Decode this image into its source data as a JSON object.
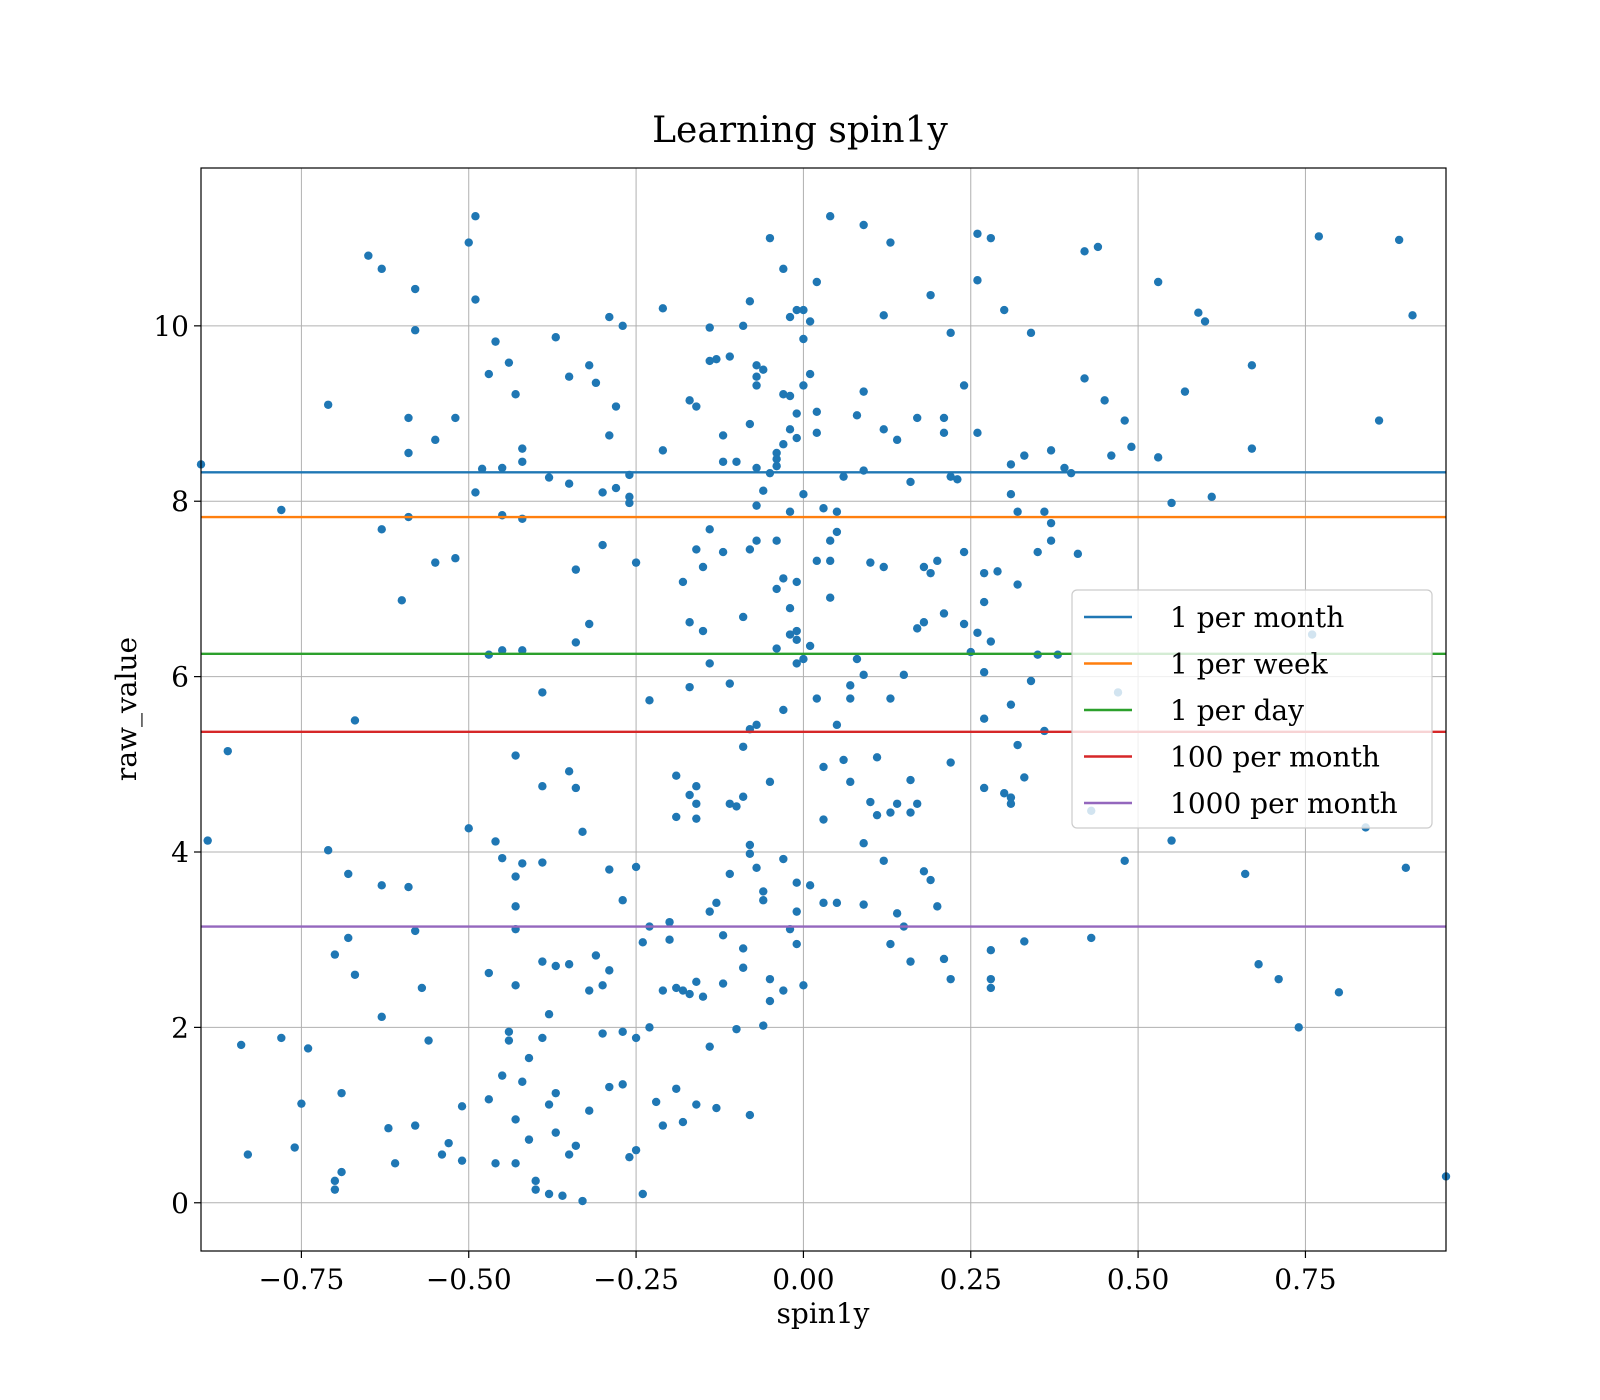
{
  "chart_data": {
    "type": "scatter",
    "title": "Learning spin1y",
    "xlabel": "spin1y",
    "ylabel": "raw_value",
    "xlim": [
      -0.9,
      0.96
    ],
    "ylim": [
      -0.55,
      11.8
    ],
    "x_ticks": [
      -0.75,
      -0.5,
      -0.25,
      0.0,
      0.25,
      0.5,
      0.75
    ],
    "x_tick_labels": [
      "−0.75",
      "−0.50",
      "−0.25",
      "0.00",
      "0.25",
      "0.50",
      "0.75"
    ],
    "y_ticks": [
      0,
      2,
      4,
      6,
      8,
      10
    ],
    "y_tick_labels": [
      "0",
      "2",
      "4",
      "6",
      "8",
      "10"
    ],
    "grid": true,
    "legend_position": "center-right",
    "point_color": "#1f77b4",
    "thresholds": [
      {
        "name": "1 per month",
        "value": 8.33,
        "color": "#1f77b4"
      },
      {
        "name": "1 per week",
        "value": 7.82,
        "color": "#ff7f0e"
      },
      {
        "name": "1 per day",
        "value": 6.26,
        "color": "#2ca02c"
      },
      {
        "name": "100 per month",
        "value": 5.37,
        "color": "#d62728"
      },
      {
        "name": "1000 per month",
        "value": 3.15,
        "color": "#9467bd"
      }
    ],
    "points": [
      [
        -0.9,
        8.42
      ],
      [
        -0.89,
        4.13
      ],
      [
        -0.86,
        5.15
      ],
      [
        -0.84,
        1.8
      ],
      [
        -0.83,
        0.55
      ],
      [
        -0.78,
        7.9
      ],
      [
        -0.78,
        1.88
      ],
      [
        -0.76,
        0.63
      ],
      [
        -0.75,
        1.13
      ],
      [
        -0.74,
        1.76
      ],
      [
        -0.71,
        9.1
      ],
      [
        -0.71,
        4.02
      ],
      [
        -0.7,
        2.83
      ],
      [
        -0.7,
        0.25
      ],
      [
        -0.7,
        0.15
      ],
      [
        -0.69,
        0.35
      ],
      [
        -0.69,
        1.25
      ],
      [
        -0.68,
        3.75
      ],
      [
        -0.68,
        3.02
      ],
      [
        -0.67,
        2.6
      ],
      [
        -0.67,
        5.5
      ],
      [
        -0.65,
        10.8
      ],
      [
        -0.63,
        10.65
      ],
      [
        -0.63,
        7.68
      ],
      [
        -0.63,
        3.62
      ],
      [
        -0.63,
        2.12
      ],
      [
        -0.62,
        0.85
      ],
      [
        -0.61,
        0.45
      ],
      [
        -0.6,
        6.87
      ],
      [
        -0.59,
        8.95
      ],
      [
        -0.59,
        8.55
      ],
      [
        -0.59,
        7.82
      ],
      [
        -0.59,
        3.6
      ],
      [
        -0.58,
        10.42
      ],
      [
        -0.58,
        9.95
      ],
      [
        -0.58,
        3.1
      ],
      [
        -0.58,
        0.88
      ],
      [
        -0.57,
        2.45
      ],
      [
        -0.56,
        1.85
      ],
      [
        -0.55,
        8.7
      ],
      [
        -0.55,
        7.3
      ],
      [
        -0.54,
        0.55
      ],
      [
        -0.53,
        0.68
      ],
      [
        -0.52,
        8.95
      ],
      [
        -0.52,
        7.35
      ],
      [
        -0.51,
        0.48
      ],
      [
        -0.51,
        1.1
      ],
      [
        -0.5,
        10.95
      ],
      [
        -0.5,
        4.27
      ],
      [
        -0.49,
        11.25
      ],
      [
        -0.49,
        10.3
      ],
      [
        -0.49,
        8.1
      ],
      [
        -0.48,
        8.37
      ],
      [
        -0.47,
        9.45
      ],
      [
        -0.47,
        6.25
      ],
      [
        -0.47,
        2.62
      ],
      [
        -0.47,
        1.18
      ],
      [
        -0.46,
        9.82
      ],
      [
        -0.46,
        4.12
      ],
      [
        -0.46,
        0.45
      ],
      [
        -0.45,
        8.38
      ],
      [
        -0.45,
        7.84
      ],
      [
        -0.45,
        6.3
      ],
      [
        -0.45,
        3.93
      ],
      [
        -0.45,
        1.45
      ],
      [
        -0.44,
        9.58
      ],
      [
        -0.44,
        1.95
      ],
      [
        -0.44,
        1.85
      ],
      [
        -0.43,
        0.95
      ],
      [
        -0.43,
        0.45
      ],
      [
        -0.43,
        9.22
      ],
      [
        -0.43,
        5.1
      ],
      [
        -0.43,
        3.72
      ],
      [
        -0.43,
        3.38
      ],
      [
        -0.43,
        3.12
      ],
      [
        -0.43,
        2.48
      ],
      [
        -0.42,
        8.45
      ],
      [
        -0.42,
        8.6
      ],
      [
        -0.42,
        7.8
      ],
      [
        -0.42,
        6.3
      ],
      [
        -0.42,
        3.87
      ],
      [
        -0.42,
        1.38
      ],
      [
        -0.41,
        1.65
      ],
      [
        -0.41,
        0.72
      ],
      [
        -0.4,
        0.25
      ],
      [
        -0.4,
        0.15
      ],
      [
        -0.39,
        5.82
      ],
      [
        -0.39,
        4.75
      ],
      [
        -0.39,
        3.88
      ],
      [
        -0.39,
        2.75
      ],
      [
        -0.39,
        1.88
      ],
      [
        -0.38,
        8.27
      ],
      [
        -0.38,
        2.15
      ],
      [
        -0.38,
        1.12
      ],
      [
        -0.38,
        0.1
      ],
      [
        -0.37,
        9.87
      ],
      [
        -0.37,
        2.7
      ],
      [
        -0.37,
        1.25
      ],
      [
        -0.37,
        0.8
      ],
      [
        -0.36,
        0.08
      ],
      [
        -0.35,
        9.42
      ],
      [
        -0.35,
        8.2
      ],
      [
        -0.35,
        4.92
      ],
      [
        -0.35,
        2.72
      ],
      [
        -0.35,
        0.55
      ],
      [
        -0.34,
        7.22
      ],
      [
        -0.34,
        6.39
      ],
      [
        -0.34,
        4.73
      ],
      [
        -0.34,
        0.65
      ],
      [
        -0.33,
        4.23
      ],
      [
        -0.33,
        0.02
      ],
      [
        -0.32,
        9.55
      ],
      [
        -0.32,
        6.6
      ],
      [
        -0.32,
        2.42
      ],
      [
        -0.32,
        1.05
      ],
      [
        -0.31,
        9.35
      ],
      [
        -0.31,
        2.82
      ],
      [
        -0.3,
        8.1
      ],
      [
        -0.3,
        7.5
      ],
      [
        -0.3,
        2.48
      ],
      [
        -0.3,
        1.93
      ],
      [
        -0.29,
        10.1
      ],
      [
        -0.29,
        8.75
      ],
      [
        -0.29,
        3.8
      ],
      [
        -0.29,
        2.65
      ],
      [
        -0.29,
        1.32
      ],
      [
        -0.28,
        9.08
      ],
      [
        -0.28,
        8.15
      ],
      [
        -0.27,
        10.0
      ],
      [
        -0.27,
        3.45
      ],
      [
        -0.27,
        1.95
      ],
      [
        -0.27,
        1.35
      ],
      [
        -0.26,
        8.3
      ],
      [
        -0.26,
        8.05
      ],
      [
        -0.26,
        7.98
      ],
      [
        -0.26,
        0.52
      ],
      [
        -0.25,
        7.3
      ],
      [
        -0.25,
        3.83
      ],
      [
        -0.25,
        1.88
      ],
      [
        -0.25,
        0.6
      ],
      [
        -0.24,
        2.97
      ],
      [
        -0.24,
        0.1
      ],
      [
        -0.23,
        5.73
      ],
      [
        -0.23,
        2.0
      ],
      [
        -0.23,
        3.15
      ],
      [
        -0.22,
        1.15
      ],
      [
        -0.21,
        10.2
      ],
      [
        -0.21,
        8.58
      ],
      [
        -0.21,
        2.42
      ],
      [
        -0.21,
        0.88
      ],
      [
        -0.2,
        3.0
      ],
      [
        -0.2,
        3.2
      ],
      [
        -0.19,
        4.87
      ],
      [
        -0.19,
        4.4
      ],
      [
        -0.19,
        2.45
      ],
      [
        -0.19,
        1.3
      ],
      [
        -0.18,
        7.08
      ],
      [
        -0.18,
        2.42
      ],
      [
        -0.18,
        0.92
      ],
      [
        -0.17,
        9.15
      ],
      [
        -0.17,
        6.62
      ],
      [
        -0.17,
        5.88
      ],
      [
        -0.17,
        4.65
      ],
      [
        -0.17,
        2.38
      ],
      [
        -0.16,
        9.08
      ],
      [
        -0.16,
        7.45
      ],
      [
        -0.16,
        4.55
      ],
      [
        -0.16,
        4.75
      ],
      [
        -0.16,
        4.38
      ],
      [
        -0.16,
        2.52
      ],
      [
        -0.16,
        1.12
      ],
      [
        -0.15,
        6.52
      ],
      [
        -0.15,
        7.25
      ],
      [
        -0.15,
        2.35
      ],
      [
        -0.14,
        9.98
      ],
      [
        -0.14,
        9.6
      ],
      [
        -0.14,
        7.68
      ],
      [
        -0.14,
        6.15
      ],
      [
        -0.14,
        3.32
      ],
      [
        -0.14,
        1.78
      ],
      [
        -0.13,
        9.62
      ],
      [
        -0.13,
        3.42
      ],
      [
        -0.13,
        1.08
      ],
      [
        -0.12,
        8.75
      ],
      [
        -0.12,
        8.45
      ],
      [
        -0.12,
        7.42
      ],
      [
        -0.12,
        3.05
      ],
      [
        -0.12,
        2.5
      ],
      [
        -0.11,
        9.65
      ],
      [
        -0.11,
        5.92
      ],
      [
        -0.11,
        4.55
      ],
      [
        -0.11,
        3.75
      ],
      [
        -0.1,
        8.45
      ],
      [
        -0.1,
        4.52
      ],
      [
        -0.1,
        1.98
      ],
      [
        -0.09,
        10.0
      ],
      [
        -0.09,
        6.68
      ],
      [
        -0.09,
        5.2
      ],
      [
        -0.09,
        4.63
      ],
      [
        -0.09,
        2.9
      ],
      [
        -0.09,
        2.68
      ],
      [
        -0.08,
        10.28
      ],
      [
        -0.08,
        8.88
      ],
      [
        -0.08,
        7.45
      ],
      [
        -0.08,
        5.4
      ],
      [
        -0.08,
        4.08
      ],
      [
        -0.08,
        3.98
      ],
      [
        -0.08,
        1.0
      ],
      [
        -0.07,
        9.55
      ],
      [
        -0.07,
        9.42
      ],
      [
        -0.07,
        9.32
      ],
      [
        -0.07,
        8.38
      ],
      [
        -0.07,
        7.95
      ],
      [
        -0.07,
        7.55
      ],
      [
        -0.07,
        5.45
      ],
      [
        -0.07,
        3.82
      ],
      [
        -0.06,
        9.5
      ],
      [
        -0.06,
        8.12
      ],
      [
        -0.06,
        3.55
      ],
      [
        -0.06,
        3.45
      ],
      [
        -0.06,
        2.02
      ],
      [
        -0.05,
        11.0
      ],
      [
        -0.05,
        8.32
      ],
      [
        -0.05,
        4.8
      ],
      [
        -0.05,
        2.55
      ],
      [
        -0.05,
        2.3
      ],
      [
        -0.04,
        8.55
      ],
      [
        -0.04,
        8.48
      ],
      [
        -0.04,
        8.4
      ],
      [
        -0.04,
        7.55
      ],
      [
        -0.04,
        7.0
      ],
      [
        -0.04,
        6.32
      ],
      [
        -0.03,
        10.65
      ],
      [
        -0.03,
        9.22
      ],
      [
        -0.03,
        8.65
      ],
      [
        -0.03,
        7.12
      ],
      [
        -0.03,
        5.62
      ],
      [
        -0.03,
        3.92
      ],
      [
        -0.03,
        2.42
      ],
      [
        -0.02,
        10.1
      ],
      [
        -0.02,
        9.2
      ],
      [
        -0.02,
        8.82
      ],
      [
        -0.02,
        7.88
      ],
      [
        -0.02,
        6.78
      ],
      [
        -0.02,
        6.48
      ],
      [
        -0.02,
        3.12
      ],
      [
        -0.01,
        10.18
      ],
      [
        -0.01,
        9.0
      ],
      [
        -0.01,
        8.72
      ],
      [
        -0.01,
        7.08
      ],
      [
        -0.01,
        6.52
      ],
      [
        -0.01,
        6.42
      ],
      [
        -0.01,
        6.15
      ],
      [
        -0.01,
        3.65
      ],
      [
        -0.01,
        3.32
      ],
      [
        -0.01,
        2.95
      ],
      [
        0.0,
        10.18
      ],
      [
        0.0,
        9.85
      ],
      [
        0.0,
        9.32
      ],
      [
        0.0,
        8.08
      ],
      [
        0.0,
        6.2
      ],
      [
        0.0,
        2.48
      ],
      [
        0.01,
        10.05
      ],
      [
        0.01,
        9.45
      ],
      [
        0.01,
        6.35
      ],
      [
        0.01,
        3.62
      ],
      [
        0.02,
        10.5
      ],
      [
        0.02,
        9.02
      ],
      [
        0.02,
        8.78
      ],
      [
        0.02,
        7.32
      ],
      [
        0.02,
        5.75
      ],
      [
        0.03,
        7.92
      ],
      [
        0.03,
        4.97
      ],
      [
        0.03,
        4.37
      ],
      [
        0.03,
        3.42
      ],
      [
        0.04,
        11.25
      ],
      [
        0.04,
        7.55
      ],
      [
        0.04,
        7.32
      ],
      [
        0.04,
        6.9
      ],
      [
        0.05,
        7.65
      ],
      [
        0.05,
        7.88
      ],
      [
        0.05,
        5.45
      ],
      [
        0.05,
        3.42
      ],
      [
        0.06,
        5.05
      ],
      [
        0.06,
        8.28
      ],
      [
        0.07,
        5.9
      ],
      [
        0.07,
        5.75
      ],
      [
        0.07,
        4.8
      ],
      [
        0.08,
        6.2
      ],
      [
        0.08,
        8.98
      ],
      [
        0.09,
        11.15
      ],
      [
        0.09,
        9.25
      ],
      [
        0.09,
        8.35
      ],
      [
        0.09,
        6.02
      ],
      [
        0.09,
        4.1
      ],
      [
        0.09,
        3.4
      ],
      [
        0.1,
        7.3
      ],
      [
        0.1,
        4.57
      ],
      [
        0.11,
        5.08
      ],
      [
        0.11,
        4.42
      ],
      [
        0.12,
        10.12
      ],
      [
        0.12,
        8.82
      ],
      [
        0.12,
        7.25
      ],
      [
        0.12,
        3.9
      ],
      [
        0.13,
        10.95
      ],
      [
        0.13,
        5.75
      ],
      [
        0.13,
        4.45
      ],
      [
        0.13,
        2.95
      ],
      [
        0.14,
        8.7
      ],
      [
        0.14,
        4.55
      ],
      [
        0.14,
        3.3
      ],
      [
        0.15,
        6.02
      ],
      [
        0.15,
        3.15
      ],
      [
        0.16,
        8.22
      ],
      [
        0.16,
        4.82
      ],
      [
        0.16,
        4.45
      ],
      [
        0.16,
        2.75
      ],
      [
        0.17,
        6.55
      ],
      [
        0.17,
        4.55
      ],
      [
        0.17,
        8.95
      ],
      [
        0.18,
        7.25
      ],
      [
        0.18,
        6.62
      ],
      [
        0.18,
        3.78
      ],
      [
        0.19,
        10.35
      ],
      [
        0.19,
        7.18
      ],
      [
        0.19,
        3.68
      ],
      [
        0.2,
        7.32
      ],
      [
        0.2,
        3.38
      ],
      [
        0.21,
        8.95
      ],
      [
        0.21,
        8.78
      ],
      [
        0.21,
        6.72
      ],
      [
        0.21,
        2.78
      ],
      [
        0.22,
        9.92
      ],
      [
        0.22,
        8.28
      ],
      [
        0.22,
        5.02
      ],
      [
        0.22,
        2.55
      ],
      [
        0.23,
        8.25
      ],
      [
        0.24,
        9.32
      ],
      [
        0.24,
        7.42
      ],
      [
        0.24,
        6.6
      ],
      [
        0.25,
        6.28
      ],
      [
        0.26,
        11.05
      ],
      [
        0.26,
        10.52
      ],
      [
        0.26,
        8.78
      ],
      [
        0.26,
        6.5
      ],
      [
        0.27,
        7.18
      ],
      [
        0.27,
        6.85
      ],
      [
        0.27,
        5.52
      ],
      [
        0.27,
        4.73
      ],
      [
        0.27,
        6.05
      ],
      [
        0.28,
        6.4
      ],
      [
        0.28,
        11.0
      ],
      [
        0.28,
        2.55
      ],
      [
        0.28,
        2.45
      ],
      [
        0.28,
        2.88
      ],
      [
        0.29,
        7.2
      ],
      [
        0.3,
        10.18
      ],
      [
        0.3,
        4.67
      ],
      [
        0.31,
        8.42
      ],
      [
        0.31,
        8.08
      ],
      [
        0.31,
        5.68
      ],
      [
        0.31,
        4.62
      ],
      [
        0.31,
        4.55
      ],
      [
        0.32,
        7.88
      ],
      [
        0.32,
        5.22
      ],
      [
        0.32,
        7.05
      ],
      [
        0.33,
        8.52
      ],
      [
        0.33,
        4.85
      ],
      [
        0.33,
        2.98
      ],
      [
        0.34,
        9.92
      ],
      [
        0.34,
        5.95
      ],
      [
        0.35,
        7.42
      ],
      [
        0.35,
        6.25
      ],
      [
        0.36,
        7.88
      ],
      [
        0.36,
        5.38
      ],
      [
        0.37,
        8.58
      ],
      [
        0.37,
        7.75
      ],
      [
        0.37,
        7.55
      ],
      [
        0.38,
        6.25
      ],
      [
        0.39,
        8.38
      ],
      [
        0.4,
        8.32
      ],
      [
        0.41,
        7.4
      ],
      [
        0.42,
        9.4
      ],
      [
        0.42,
        10.85
      ],
      [
        0.44,
        10.9
      ],
      [
        0.45,
        9.15
      ],
      [
        0.46,
        8.52
      ],
      [
        0.47,
        5.82
      ],
      [
        0.48,
        8.92
      ],
      [
        0.49,
        8.62
      ],
      [
        0.43,
        4.47
      ],
      [
        0.48,
        3.9
      ],
      [
        0.43,
        3.02
      ],
      [
        0.53,
        10.5
      ],
      [
        0.53,
        8.5
      ],
      [
        0.55,
        7.98
      ],
      [
        0.57,
        9.25
      ],
      [
        0.59,
        10.15
      ],
      [
        0.6,
        10.05
      ],
      [
        0.61,
        8.05
      ],
      [
        0.55,
        4.13
      ],
      [
        0.66,
        3.75
      ],
      [
        0.67,
        9.55
      ],
      [
        0.67,
        8.6
      ],
      [
        0.76,
        6.48
      ],
      [
        0.77,
        11.02
      ],
      [
        0.84,
        4.28
      ],
      [
        0.86,
        8.92
      ],
      [
        0.89,
        10.98
      ],
      [
        0.9,
        3.82
      ],
      [
        0.91,
        10.12
      ],
      [
        0.68,
        2.72
      ],
      [
        0.71,
        2.55
      ],
      [
        0.74,
        2.0
      ],
      [
        0.8,
        2.4
      ],
      [
        0.96,
        0.3
      ]
    ]
  }
}
